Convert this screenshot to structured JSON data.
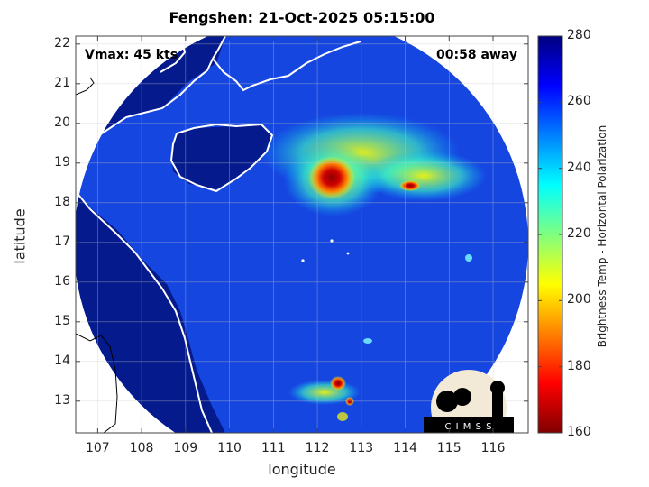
{
  "title": "Fengshen: 21-Oct-2025 05:15:00",
  "overlay": {
    "vmax": "Vmax: 45 kts",
    "time_away": "00:58 away"
  },
  "axes": {
    "xlabel": "longitude",
    "ylabel": "latitude",
    "xticks": [
      "107",
      "108",
      "109",
      "110",
      "111",
      "112",
      "113",
      "114",
      "115",
      "116"
    ],
    "yticks": [
      "13",
      "14",
      "15",
      "16",
      "17",
      "18",
      "19",
      "20",
      "21",
      "22"
    ],
    "xlim": [
      106.5,
      116.8
    ],
    "ylim": [
      12.2,
      22.2
    ],
    "grid": true
  },
  "colorbar": {
    "label": "Brightness Temp - Horizontal Polarization",
    "ticks": [
      "160",
      "180",
      "200",
      "220",
      "240",
      "260",
      "280"
    ],
    "range": [
      160,
      280
    ],
    "colormap": "jet"
  },
  "storm_center": {
    "lon": 112.0,
    "lat": 17.0
  },
  "logo": {
    "text": "C I M S S"
  },
  "colors": {
    "background_land": "#051a8c",
    "field_base": "#1646e0",
    "coastline": "#ffffff"
  }
}
